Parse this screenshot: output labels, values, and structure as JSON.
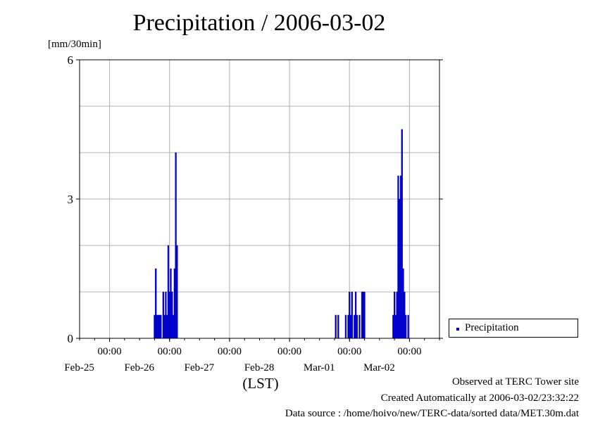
{
  "chart_data": {
    "type": "bar",
    "title": "Precipitation / 2006-03-02",
    "ylabel": "[mm/30min]",
    "xlabel": "(LST)",
    "ylim": [
      0,
      6
    ],
    "yticks": [
      "0",
      "3",
      "6"
    ],
    "xlim": [
      "2006-02-24 12:00",
      "2006-03-02 12:00"
    ],
    "xticks": [
      {
        "time": "2006-02-25 00:00",
        "label": "00:00",
        "date": "Feb-25"
      },
      {
        "time": "2006-02-26 00:00",
        "label": "00:00",
        "date": "Feb-26"
      },
      {
        "time": "2006-02-27 00:00",
        "label": "00:00",
        "date": "Feb-27"
      },
      {
        "time": "2006-02-28 00:00",
        "label": "00:00",
        "date": "Feb-28"
      },
      {
        "time": "2006-03-01 00:00",
        "label": "00:00",
        "date": "Mar-01"
      },
      {
        "time": "2006-03-02 00:00",
        "label": "00:00",
        "date": "Mar-02"
      }
    ],
    "grid": true,
    "legend_position": "right",
    "series": [
      {
        "name": "Precipitation",
        "color": "#0000cc",
        "points": [
          [
            "2006-02-25 18:00",
            0.5
          ],
          [
            "2006-02-25 18:30",
            1.5
          ],
          [
            "2006-02-25 19:00",
            0.5
          ],
          [
            "2006-02-25 19:30",
            0.5
          ],
          [
            "2006-02-25 20:00",
            0.5
          ],
          [
            "2006-02-25 20:30",
            0.5
          ],
          [
            "2006-02-25 21:30",
            1.0
          ],
          [
            "2006-02-25 22:00",
            0.5
          ],
          [
            "2006-02-25 22:30",
            1.0
          ],
          [
            "2006-02-25 23:00",
            0.5
          ],
          [
            "2006-02-25 23:30",
            2.0
          ],
          [
            "2006-02-26 00:00",
            1.0
          ],
          [
            "2006-02-26 00:30",
            1.5
          ],
          [
            "2006-02-26 01:00",
            1.0
          ],
          [
            "2006-02-26 01:30",
            0.5
          ],
          [
            "2006-02-26 02:00",
            1.5
          ],
          [
            "2006-02-26 02:30",
            4.0
          ],
          [
            "2006-02-26 03:00",
            2.0
          ],
          [
            "2006-02-28 18:30",
            0.5
          ],
          [
            "2006-02-28 19:30",
            0.5
          ],
          [
            "2006-02-28 22:30",
            0.5
          ],
          [
            "2006-02-28 23:30",
            0.5
          ],
          [
            "2006-03-01 00:00",
            1.0
          ],
          [
            "2006-03-01 00:30",
            0.5
          ],
          [
            "2006-03-01 01:00",
            1.0
          ],
          [
            "2006-03-01 02:00",
            0.5
          ],
          [
            "2006-03-01 02:30",
            1.0
          ],
          [
            "2006-03-01 03:00",
            0.5
          ],
          [
            "2006-03-01 04:00",
            0.5
          ],
          [
            "2006-03-01 05:00",
            1.0
          ],
          [
            "2006-03-01 05:30",
            1.0
          ],
          [
            "2006-03-01 06:00",
            1.0
          ],
          [
            "2006-03-01 17:30",
            0.5
          ],
          [
            "2006-03-01 18:00",
            1.0
          ],
          [
            "2006-03-01 18:30",
            0.5
          ],
          [
            "2006-03-01 19:00",
            1.0
          ],
          [
            "2006-03-01 19:30",
            3.5
          ],
          [
            "2006-03-01 20:00",
            3.0
          ],
          [
            "2006-03-01 20:30",
            3.5
          ],
          [
            "2006-03-01 21:00",
            4.5
          ],
          [
            "2006-03-01 21:30",
            1.5
          ],
          [
            "2006-03-01 22:00",
            1.0
          ],
          [
            "2006-03-01 22:30",
            0.5
          ],
          [
            "2006-03-01 23:30",
            0.5
          ]
        ]
      }
    ]
  },
  "footer": {
    "line1": "Observed at TERC Tower site",
    "line2": "Created Automatically at 2006-03-02/23:32:22",
    "line3": "Data source : /home/hoivo/new/TERC-data/sorted  data/MET.30m.dat"
  }
}
